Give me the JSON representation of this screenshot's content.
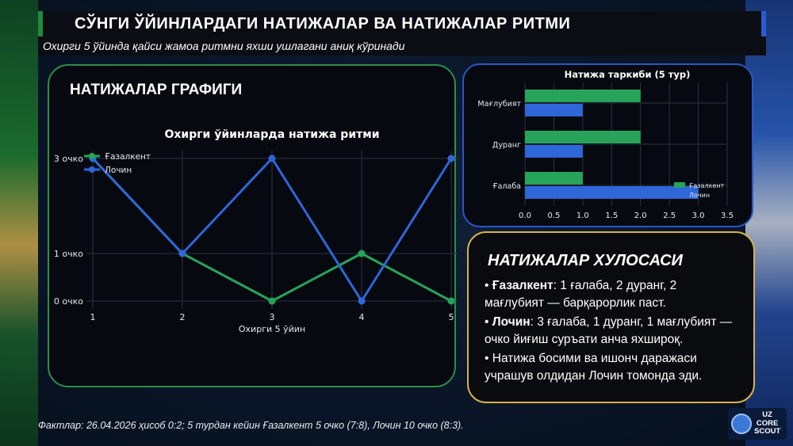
{
  "header": {
    "title": "СЎНГИ ЎЙИНЛАРДАГИ НАТИЖАЛАР ВА НАТИЖАЛАР РИТМИ",
    "subtitle": "Охирги 5 ўйинда қайси жамоа ритмни яхши ушлагани аниқ кўринади"
  },
  "left_panel": {
    "heading": "НАТИЖАЛАР ГРАФИГИ"
  },
  "summary_panel": {
    "heading": "НАТИЖАЛАР ХУЛОСАСИ",
    "items": [
      {
        "bullet": "•",
        "team": "Ғазалкент",
        "text": ": 1 ғалаба, 2 дуранг, 2 мағлубият — барқарорлик паст."
      },
      {
        "bullet": "•",
        "team": "Лочин",
        "text": ": 3 ғалаба, 1 дуранг, 1 мағлубият — очко йиғиш суръати анча яхшироқ."
      },
      {
        "bullet": "•",
        "team": "",
        "text": "Натижа босими ва ишонч даражаси учрашув олдидан Лочин томонда эди."
      }
    ]
  },
  "footer": {
    "text": "Фактлар: 26.04.2026 ҳисоб 0:2; 5 турдан кейин Ғазалкент 5 очко (7:8), Лочин 10 очко (8:3)."
  },
  "logo": {
    "line1": "UZ",
    "line2": "CORE",
    "line3": "SCOUT"
  },
  "colors": {
    "green": "#27a35a",
    "blue": "#2f66d8"
  },
  "chart_data": [
    {
      "type": "line",
      "title": "Охирги ўйинларда натижа ритми",
      "xlabel": "Охирги 5 ўйин",
      "ylabel": "",
      "x": [
        1,
        2,
        3,
        4,
        5
      ],
      "yticks": [
        0,
        1,
        3
      ],
      "ytick_labels": [
        "0 очко",
        "1 очко",
        "3 очко"
      ],
      "ylim": [
        0,
        3
      ],
      "grid": true,
      "legend": "top-left",
      "series": [
        {
          "name": "Ғазалкент",
          "color": "#27a35a",
          "values": [
            3,
            1,
            0,
            1,
            0
          ]
        },
        {
          "name": "Лочин",
          "color": "#2f66d8",
          "values": [
            3,
            1,
            3,
            0,
            3
          ]
        }
      ]
    },
    {
      "type": "bar",
      "orientation": "horizontal",
      "title": "Натижа таркиби (5 тур)",
      "categories": [
        "Мағлубият",
        "Дуранг",
        "Ғалаба"
      ],
      "xticks": [
        "0.0",
        "0.5",
        "1.0",
        "1.5",
        "2.0",
        "2.5",
        "3.0",
        "3.5"
      ],
      "xlim": [
        0,
        3.5
      ],
      "grid": true,
      "legend": "bottom-right",
      "series": [
        {
          "name": "Ғазалкент",
          "color": "#27a35a",
          "values": [
            2,
            2,
            1
          ]
        },
        {
          "name": "Лочин",
          "color": "#2f66d8",
          "values": [
            1,
            1,
            3
          ]
        }
      ]
    }
  ]
}
